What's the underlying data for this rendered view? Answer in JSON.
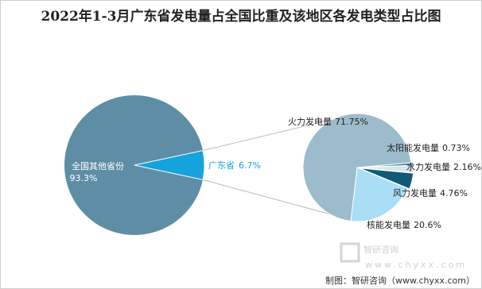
{
  "chart_data": {
    "type": "pie-of-pie",
    "title": "2022年1-3月广东省发电量占全国比重及该地区各发电类型占比图",
    "main": {
      "categories": [
        "全国其他省份",
        "广东省"
      ],
      "values": [
        93.3,
        6.7
      ],
      "value_labels": [
        "93.3%",
        "6.7%"
      ],
      "colors": [
        "#5e8ea6",
        "#14a3dc"
      ]
    },
    "secondary": {
      "categories": [
        "火力发电量",
        "太阳能发电量",
        "水力发电量",
        "风力发电量",
        "核能发电量"
      ],
      "values": [
        71.75,
        0.73,
        2.16,
        4.76,
        20.6
      ],
      "value_labels": [
        "71.75%",
        "0.73%",
        "2.16%",
        "4.76%",
        "20.6%"
      ],
      "colors": [
        "#9dbccb",
        "#2f7390",
        "#d5e5ec",
        "#0f5a76",
        "#a9def6"
      ]
    }
  },
  "watermark": "智研咨询",
  "watermark_url": "www.chyxx.com",
  "source": "制图：智研咨询（www.chyxx.com）"
}
